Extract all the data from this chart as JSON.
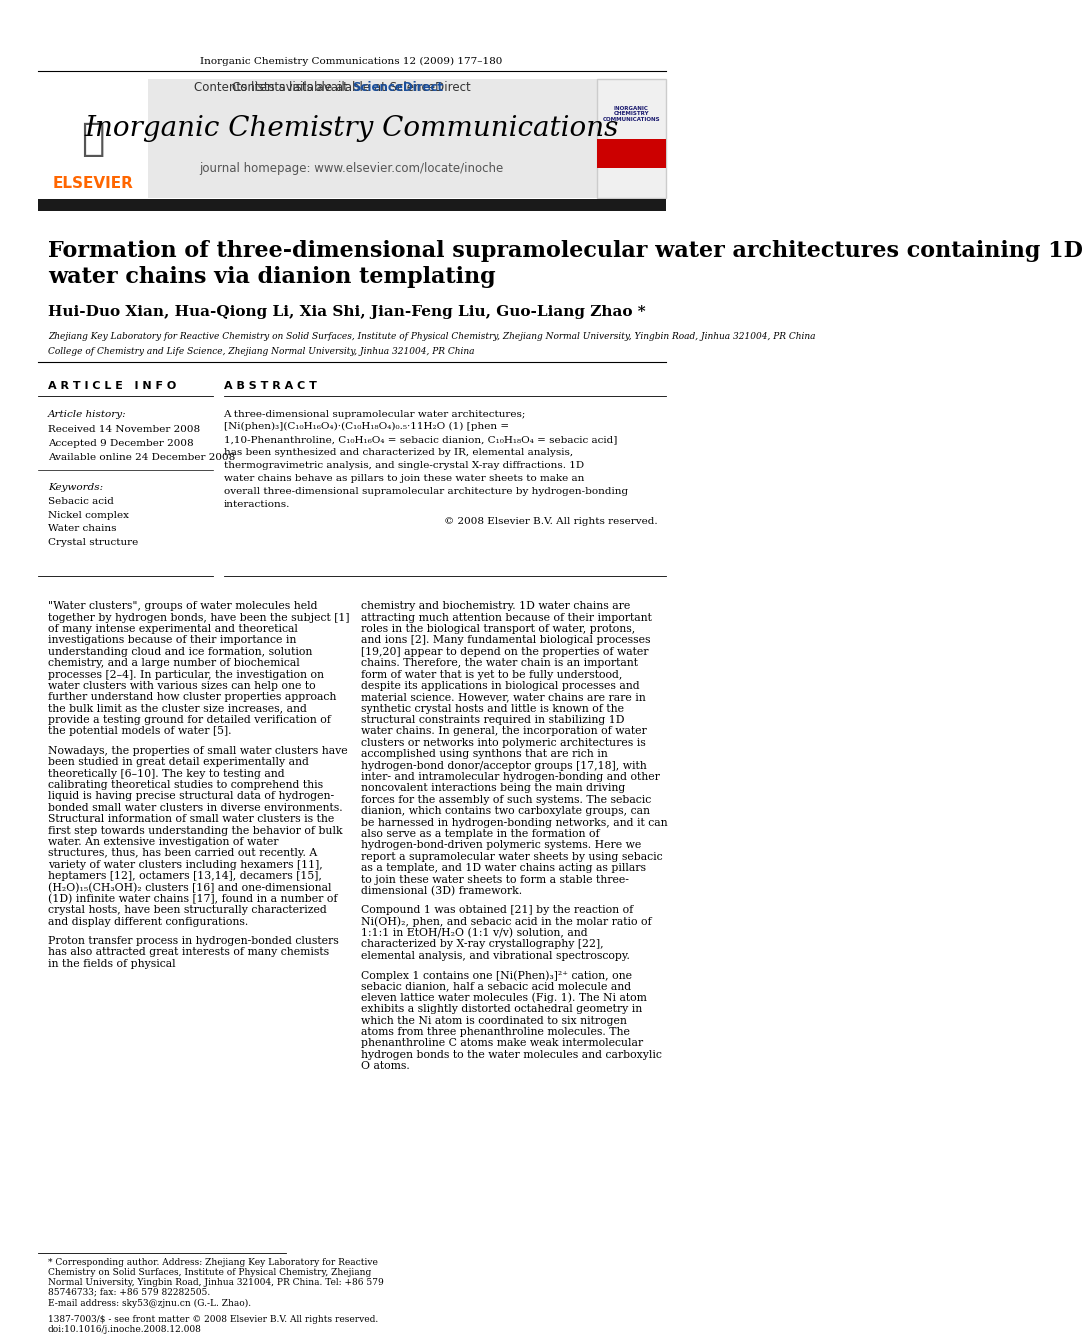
{
  "journal_citation": "Inorganic Chemistry Communications 12 (2009) 177–180",
  "journal_name": "Inorganic Chemistry Communications",
  "journal_homepage": "journal homepage: www.elsevier.com/locate/inoche",
  "contents_line": "Contents lists available at ScienceDirect",
  "article_title_line1": "Formation of three-dimensional supramolecular water architectures containing 1D",
  "article_title_line2": "water chains via dianion templating",
  "authors": "Hui-Duo Xian, Hua-Qiong Li, Xia Shi, Jian-Feng Liu, Guo-Liang Zhao *",
  "affiliation1": "Zhejiang Key Laboratory for Reactive Chemistry on Solid Surfaces, Institute of Physical Chemistry, Zhejiang Normal University, Yingbin Road, Jinhua 321004, PR China",
  "affiliation2": "College of Chemistry and Life Science, Zhejiang Normal University, Jinhua 321004, PR China",
  "article_info_header": "A R T I C L E   I N F O",
  "article_history_header": "Article history:",
  "received": "Received 14 November 2008",
  "accepted": "Accepted 9 December 2008",
  "available": "Available online 24 December 2008",
  "keywords_header": "Keywords:",
  "keywords": [
    "Sebacic acid",
    "Nickel complex",
    "Water chains",
    "Crystal structure"
  ],
  "abstract_header": "A B S T R A C T",
  "abstract_text": "A three-dimensional supramolecular water architectures; [Ni(phen)₃](C₁₀H₁₆O₄)·(C₁₀H₁₈O₄)₀.₅·11H₂O (1) [phen = 1,10-Phenanthroline, C₁₀H₁₆O₄ = sebacic dianion, C₁₀H₁₈O₄ = sebacic acid] has been synthesized and characterized by IR, elemental analysis, thermogravimetric analysis, and single-crystal X-ray diffractions. 1D water chains behave as pillars to join these water sheets to make an overall three-dimensional supramolecular architecture by hydrogen-bonding interactions.",
  "copyright": "© 2008 Elsevier B.V. All rights reserved.",
  "body_col1_para1": "\"Water clusters\", groups of water molecules held together by hydrogen bonds, have been the subject [1] of many intense experimental and theoretical investigations because of their importance in understanding cloud and ice formation, solution chemistry, and a large number of biochemical processes [2–4]. In particular, the investigation on water clusters with various sizes can help one to further understand how cluster properties approach the bulk limit as the cluster size increases, and provide a testing ground for detailed verification of the potential models of water [5].",
  "body_col1_para2": "Nowadays, the properties of small water clusters have been studied in great detail experimentally and theoretically [6–10]. The key to testing and calibrating theoretical studies to comprehend this liquid is having precise structural data of hydrogen-bonded small water clusters in diverse environments. Structural information of small water clusters is the first step towards understanding the behavior of bulk water. An extensive investigation of water structures, thus, has been carried out recently. A variety of water clusters including hexamers [11], heptamers [12], octamers [13,14], decamers [15], (H₂O)₁₅(CH₃OH)₂ clusters [16] and one-dimensional (1D) infinite water chains [17], found in a number of crystal hosts, have been structurally characterized and display different configurations.",
  "body_col1_para3": "Proton transfer process in hydrogen-bonded clusters has also attracted great interests of many chemists in the fields of physical",
  "body_col2_para1": "chemistry and biochemistry. 1D water chains are attracting much attention because of their important roles in the biological transport of water, protons, and ions [2]. Many fundamental biological processes [19,20] appear to depend on the properties of water chains. Therefore, the water chain is an important form of water that is yet to be fully understood, despite its applications in biological processes and material science. However, water chains are rare in synthetic crystal hosts and little is known of the structural constraints required in stabilizing 1D water chains. In general, the incorporation of water clusters or networks into polymeric architectures is accomplished using synthons that are rich in hydrogen-bond donor/acceptor groups [17,18], with inter- and intramolecular hydrogen-bonding and other noncovalent interactions being the main driving forces for the assembly of such systems. The sebacic dianion, which contains two carboxylate groups, can be harnessed in hydrogen-bonding networks, and it can also serve as a template in the formation of hydrogen-bond-driven polymeric systems. Here we report a supramolecular water sheets by using sebacic as a template, and 1D water chains acting as pillars to join these water sheets to form a stable three-dimensional (3D) framework.",
  "body_col2_para2": "Compound 1 was obtained [21] by the reaction of Ni(OH)₂, phen, and sebacic acid in the molar ratio of 1:1:1 in EtOH/H₂O (1:1 v/v) solution, and characterized by X-ray crystallography [22], elemental analysis, and vibrational spectroscopy.",
  "body_col2_para3": "Complex 1 contains one [Ni(Phen)₃]²⁺ cation, one sebacic dianion, half a sebacic acid molecule and eleven lattice water molecules (Fig. 1). The Ni atom exhibits a slightly distorted octahedral geometry in which the Ni atom is coordinated to six nitrogen atoms from three phenanthroline molecules. The phenanthroline C atoms make weak intermolecular hydrogen bonds to the water molecules and carboxylic O atoms.",
  "footnote_star": "* Corresponding author. Address: Zhejiang Key Laboratory for Reactive Chemistry on Solid Surfaces, Institute of Physical Chemistry, Zhejiang Normal University, Yingbin Road, Jinhua 321004, PR China. Tel: +86 579 85746733; fax: +86 579 82282505.",
  "footnote_email": "E-mail address: sky53@zjnu.cn (G.-L. Zhao).",
  "footnote_issn": "1387-7003/$ - see front matter © 2008 Elsevier B.V. All rights reserved.",
  "footnote_doi": "doi:10.1016/j.inoche.2008.12.008",
  "elsevier_color": "#FF6600",
  "sciencedirect_color": "#1B4F9B",
  "header_bg_color": "#E8E8E8",
  "black_bar_color": "#1A1A1A",
  "title_color": "#000000",
  "body_text_color": "#000000"
}
